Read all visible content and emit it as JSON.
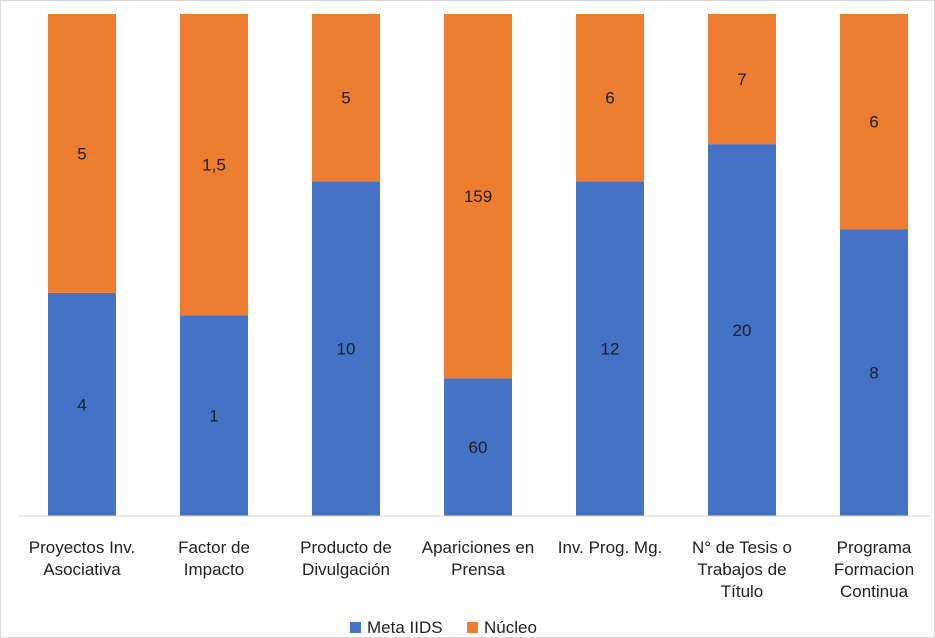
{
  "chart_data": {
    "type": "bar",
    "stacked": true,
    "normalized": true,
    "categories": [
      [
        "Proyectos Inv.",
        "Asociativa"
      ],
      [
        "Factor de",
        "Impacto"
      ],
      [
        "Producto de",
        "Divulgación"
      ],
      [
        "Apariciones en",
        "Prensa"
      ],
      [
        "Inv. Prog. Mg."
      ],
      [
        "N° de Tesis o",
        "Trabajos de",
        "Título"
      ],
      [
        "Programa",
        "Formacion",
        "Continua"
      ]
    ],
    "series": [
      {
        "name": "Meta IIDS",
        "color": "#4472C4",
        "values": [
          4,
          1,
          10,
          60,
          12,
          20,
          8
        ],
        "labels": [
          "4",
          "1",
          "10",
          "60",
          "12",
          "20",
          "8"
        ]
      },
      {
        "name": "Núcleo",
        "color": "#ED7D31",
        "values": [
          5,
          1.5,
          5,
          159,
          6,
          7,
          6
        ],
        "labels": [
          "5",
          "1,5",
          "5",
          "159",
          "6",
          "7",
          "6"
        ]
      }
    ],
    "legend": "bottom",
    "grid": false
  }
}
